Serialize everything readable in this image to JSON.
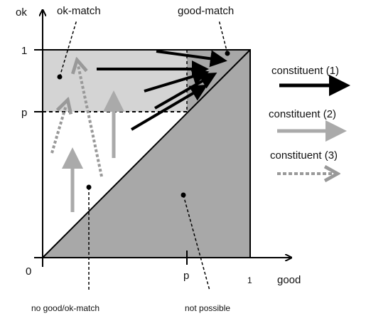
{
  "axes": {
    "y_label": "ok",
    "x_label": "good",
    "origin": "0",
    "y_ticks": [
      "1",
      "p"
    ],
    "x_ticks": [
      "p",
      "1"
    ]
  },
  "annotations": {
    "ok_match": "ok-match",
    "good_match": "good-match",
    "no_match": "no good/ok-match",
    "not_possible": "not possible"
  },
  "legend": [
    "constituent (1)",
    "constituent (2)",
    "constituent (3)"
  ]
}
